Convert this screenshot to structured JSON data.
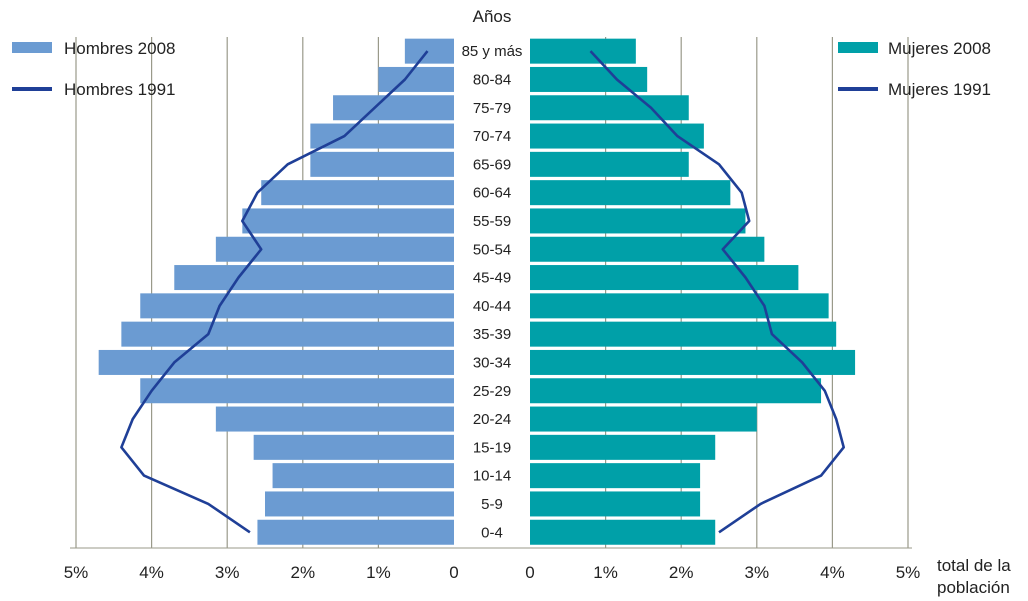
{
  "chart_data": {
    "type": "bar",
    "title": "Años",
    "xlabel": [
      "total de la",
      "población"
    ],
    "age_groups": [
      "0-4",
      "5-9",
      "10-14",
      "15-19",
      "20-24",
      "25-29",
      "30-34",
      "35-39",
      "40-44",
      "45-49",
      "50-54",
      "55-59",
      "60-64",
      "65-69",
      "70-74",
      "75-79",
      "80-84",
      "85 y más"
    ],
    "x_ticks": [
      "5%",
      "4%",
      "3%",
      "2%",
      "1%",
      "0",
      "0",
      "1%",
      "2%",
      "3%",
      "4%",
      "5%"
    ],
    "xlim": [
      0,
      5
    ],
    "series": [
      {
        "name": "Hombres 2008",
        "kind": "bar",
        "side": "left",
        "color": "#6b9bd2",
        "values": [
          2.6,
          2.5,
          2.4,
          2.65,
          3.15,
          4.15,
          4.7,
          4.4,
          4.15,
          3.7,
          3.15,
          2.8,
          2.55,
          1.9,
          1.9,
          1.6,
          1.0,
          0.65
        ]
      },
      {
        "name": "Hombres 1991",
        "kind": "line",
        "side": "left",
        "color": "#1f3f97",
        "values": [
          2.7,
          3.25,
          4.1,
          4.4,
          4.25,
          4.0,
          3.7,
          3.25,
          3.1,
          2.85,
          2.55,
          2.8,
          2.6,
          2.2,
          1.45,
          1.05,
          0.65,
          0.35
        ]
      },
      {
        "name": "Mujeres 2008",
        "kind": "bar",
        "side": "right",
        "color": "#00a0a8",
        "values": [
          2.45,
          2.25,
          2.25,
          2.45,
          3.0,
          3.85,
          4.3,
          4.05,
          3.95,
          3.55,
          3.1,
          2.85,
          2.65,
          2.1,
          2.3,
          2.1,
          1.55,
          1.4
        ]
      },
      {
        "name": "Mujeres 1991",
        "kind": "line",
        "side": "right",
        "color": "#1f3f97",
        "values": [
          2.5,
          3.05,
          3.85,
          4.15,
          4.05,
          3.9,
          3.6,
          3.2,
          3.1,
          2.85,
          2.55,
          2.9,
          2.8,
          2.5,
          1.95,
          1.6,
          1.15,
          0.8
        ]
      }
    ],
    "grid": true,
    "legend": {
      "left": [
        "Hombres 2008",
        "Hombres 1991"
      ],
      "right": [
        "Mujeres 2008",
        "Mujeres 1991"
      ]
    }
  }
}
